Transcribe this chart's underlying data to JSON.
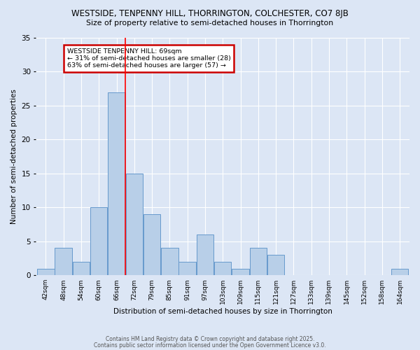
{
  "title1": "WESTSIDE, TENPENNY HILL, THORRINGTON, COLCHESTER, CO7 8JB",
  "title2": "Size of property relative to semi-detached houses in Thorrington",
  "xlabel": "Distribution of semi-detached houses by size in Thorrington",
  "ylabel": "Number of semi-detached properties",
  "bin_labels": [
    "42sqm",
    "48sqm",
    "54sqm",
    "60sqm",
    "66sqm",
    "72sqm",
    "79sqm",
    "85sqm",
    "91sqm",
    "97sqm",
    "103sqm",
    "109sqm",
    "115sqm",
    "121sqm",
    "127sqm",
    "133sqm",
    "139sqm",
    "145sqm",
    "152sqm",
    "158sqm",
    "164sqm"
  ],
  "values": [
    1,
    4,
    2,
    10,
    27,
    15,
    9,
    4,
    2,
    6,
    2,
    1,
    4,
    3,
    0,
    0,
    0,
    0,
    0,
    0,
    1
  ],
  "bar_color": "#b8cfe8",
  "bar_edge_color": "#6699cc",
  "bg_color": "#dce6f5",
  "grid_color": "#ffffff",
  "red_line_x": 4.5,
  "annotation_text": "WESTSIDE TENPENNY HILL: 69sqm\n← 31% of semi-detached houses are smaller (28)\n63% of semi-detached houses are larger (57) →",
  "annotation_box_color": "#cc0000",
  "ylim": [
    0,
    35
  ],
  "yticks": [
    0,
    5,
    10,
    15,
    20,
    25,
    30,
    35
  ],
  "footer1": "Contains HM Land Registry data © Crown copyright and database right 2025.",
  "footer2": "Contains public sector information licensed under the Open Government Licence v3.0."
}
